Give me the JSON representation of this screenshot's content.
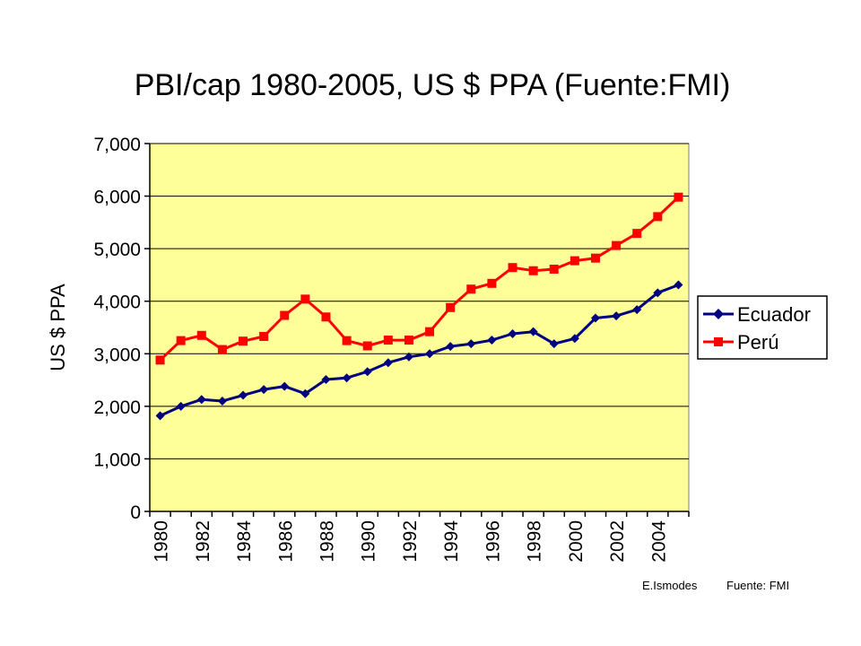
{
  "chart_data": {
    "type": "line",
    "title": "PBI/cap 1980-2005, US $ PPA (Fuente:FMI)",
    "xlabel": "",
    "ylabel": "US $ PPA",
    "ylim": [
      0,
      7000
    ],
    "yticks": [
      "0",
      "1,000",
      "2,000",
      "3,000",
      "4,000",
      "5,000",
      "6,000",
      "7,000"
    ],
    "x": [
      1980,
      1981,
      1982,
      1983,
      1984,
      1985,
      1986,
      1987,
      1988,
      1989,
      1990,
      1991,
      1992,
      1993,
      1994,
      1995,
      1996,
      1997,
      1998,
      1999,
      2000,
      2001,
      2002,
      2003,
      2004,
      2005
    ],
    "xtick_labels": [
      "1980",
      "1982",
      "1984",
      "1986",
      "1988",
      "1990",
      "1992",
      "1994",
      "1996",
      "1998",
      "2000",
      "2002",
      "2004"
    ],
    "grid": true,
    "legend_position": "right",
    "plot_background": "#ffff99",
    "series": [
      {
        "name": "Ecuador",
        "color": "#000080",
        "marker": "diamond",
        "values": [
          1820,
          2000,
          2130,
          2100,
          2210,
          2320,
          2380,
          2240,
          2510,
          2540,
          2660,
          2830,
          2940,
          3000,
          3140,
          3190,
          3260,
          3380,
          3420,
          3190,
          3290,
          3680,
          3720,
          3840,
          4160,
          4310
        ]
      },
      {
        "name": "Perú",
        "color": "#ff0000",
        "marker": "square",
        "values": [
          2880,
          3250,
          3350,
          3080,
          3240,
          3330,
          3730,
          4040,
          3700,
          3250,
          3150,
          3260,
          3260,
          3420,
          3880,
          4230,
          4340,
          4640,
          4580,
          4610,
          4770,
          4820,
          5060,
          5290,
          5610,
          5980
        ]
      }
    ]
  },
  "footer": {
    "author": "E.Ismodes",
    "source": "Fuente: FMI"
  }
}
